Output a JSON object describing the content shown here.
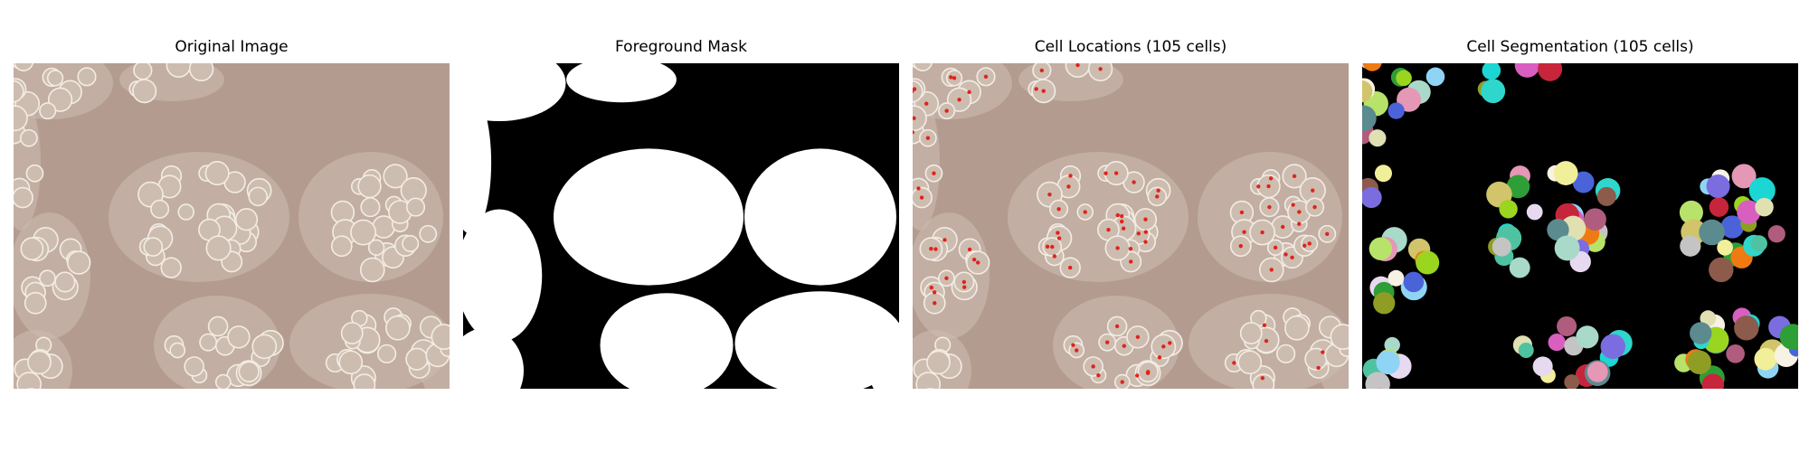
{
  "figure": {
    "panels": [
      {
        "title": "Original Image",
        "kind": "micrograph"
      },
      {
        "title": "Foreground Mask",
        "kind": "binary-mask"
      },
      {
        "title": "Cell Locations (105 cells)",
        "kind": "micrograph-with-markers"
      },
      {
        "title": "Cell Segmentation (105 cells)",
        "kind": "label-map"
      }
    ]
  },
  "colors": {
    "figure_background": "#ffffff",
    "micrograph_background": "#b39b90",
    "cell_fill": "#cdbdb0",
    "cell_outline": "#f3ece4",
    "mask_background": "#000000",
    "mask_foreground": "#ffffff",
    "marker": "#e0241b",
    "segment_palette": [
      "#e7d9f0",
      "#a9d9c9",
      "#e597b6",
      "#b7e36a",
      "#8fd4f5",
      "#f7f2e3",
      "#4b63d9",
      "#2e9e36",
      "#d1c46a",
      "#f07a12",
      "#9ad520",
      "#8f9d24",
      "#d85fc0",
      "#2fd6cc",
      "#1bd6d2",
      "#c7253b",
      "#b05c7e",
      "#8c5b4b",
      "#7b6de0",
      "#e0e0b2",
      "#5b8a8f",
      "#f2ef9a",
      "#4fc3a1",
      "#c4c4c4"
    ]
  }
}
